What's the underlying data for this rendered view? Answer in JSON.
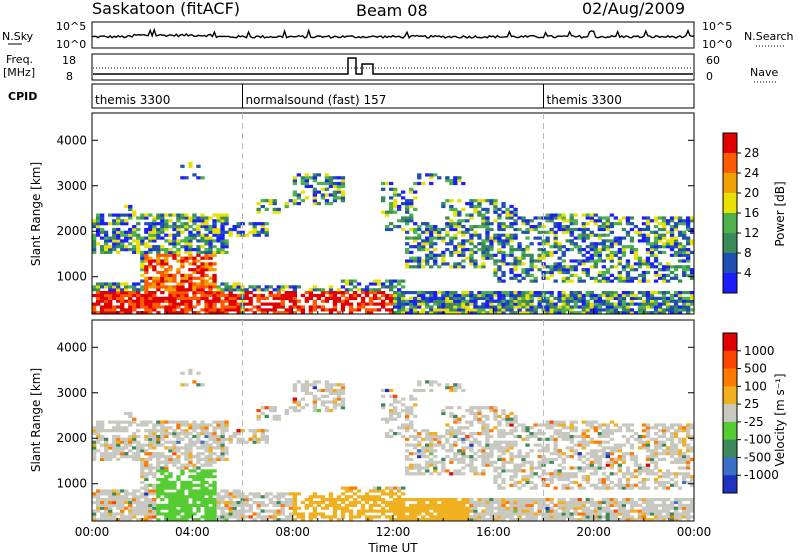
{
  "header": {
    "station": "Saskatoon (fitACF)",
    "beam": "Beam 08",
    "date": "02/Aug/2009"
  },
  "top_panels": {
    "nsky_label": "N.Sky",
    "nsky_ticks": [
      "10^5",
      "10^0"
    ],
    "nsearch_label": "N.Search",
    "nsearch_ticks": [
      "10^5",
      "10^0"
    ],
    "freq_label": "Freq.",
    "freq_unit": "[MHz]",
    "freq_ticks": [
      "18",
      "8"
    ],
    "nave_label": "Nave",
    "nave_ticks": [
      "60",
      "0"
    ],
    "cpid_label": "CPID",
    "cpid_segments": [
      {
        "label": "themis 3300",
        "start_h": 0,
        "end_h": 6
      },
      {
        "label": "normalsound (fast) 157",
        "start_h": 6,
        "end_h": 18
      },
      {
        "label": "themis 3300",
        "start_h": 18,
        "end_h": 24
      }
    ]
  },
  "chart_data": [
    {
      "type": "heatmap",
      "name": "power",
      "ylabel": "Slant Range [km]",
      "yticks": [
        "1000",
        "2000",
        "3000",
        "4000"
      ],
      "ylim": [
        180,
        4600
      ],
      "xlim": [
        0,
        24
      ],
      "colorbar": {
        "label": "Power [dB]",
        "ticks": [
          "4",
          "8",
          "12",
          "16",
          "20",
          "24",
          "28"
        ],
        "colors": [
          "#1c1cff",
          "#1f4fb0",
          "#3a8a5a",
          "#4cb04c",
          "#e8e000",
          "#f0a000",
          "#ff5a00",
          "#e00000"
        ]
      }
    },
    {
      "type": "heatmap",
      "name": "velocity",
      "ylabel": "Slant Range [km]",
      "yticks": [
        "1000",
        "2000",
        "3000",
        "4000"
      ],
      "ylim": [
        180,
        4600
      ],
      "xlim": [
        0,
        24
      ],
      "colorbar": {
        "label": "Velocity [m s⁻¹]",
        "ticks": [
          "1000",
          "500",
          "100",
          "25",
          "-25",
          "-100",
          "-500",
          "-1000"
        ],
        "colors": [
          "#2030c0",
          "#3b6fc8",
          "#3c8a5a",
          "#55cc33",
          "#c8c8c0",
          "#f0b020",
          "#ff7a00",
          "#ff4400",
          "#e00000"
        ]
      }
    }
  ],
  "x_axis": {
    "label": "Time UT",
    "ticks": [
      "00:00",
      "04:00",
      "08:00",
      "12:00",
      "16:00",
      "20:00",
      "00:00"
    ]
  }
}
